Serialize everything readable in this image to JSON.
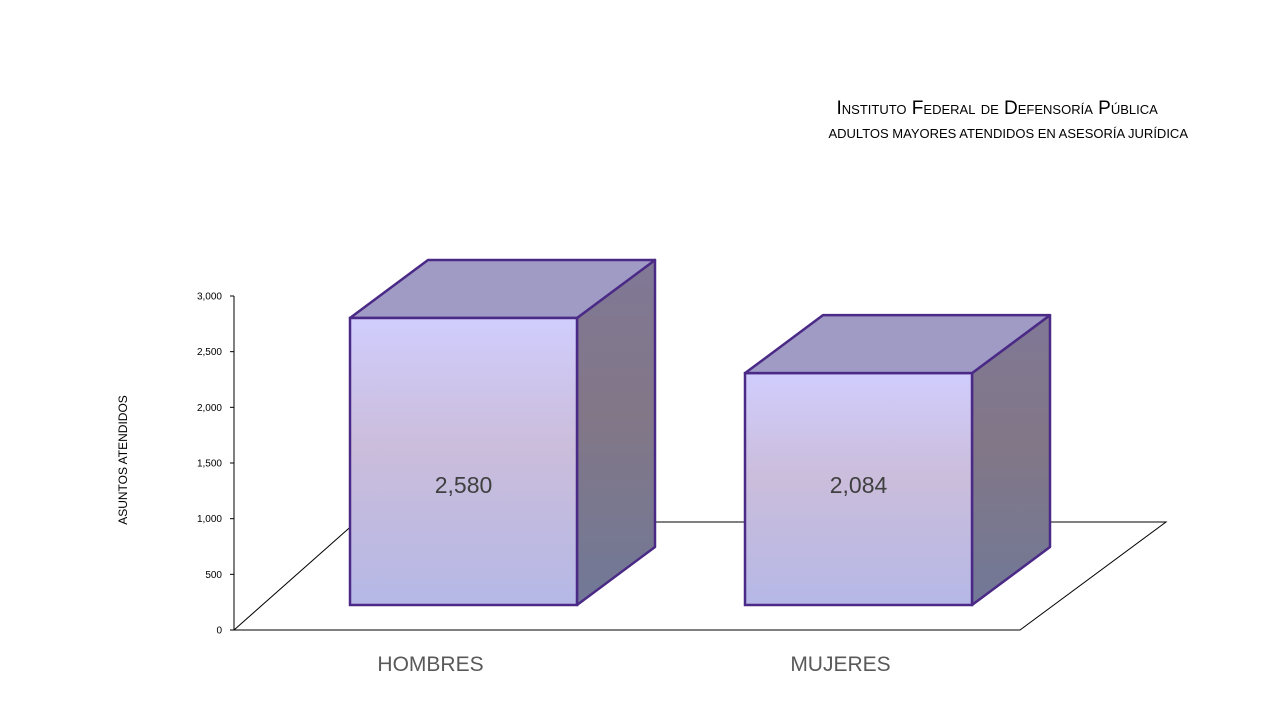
{
  "header": {
    "title": "Instituto Federal de Defensoría Pública",
    "subtitle": "ADULTOS MAYORES ATENDIDOS EN ASESORÍA JURÍDICA"
  },
  "chart_data": {
    "type": "bar",
    "style": "3d",
    "categories": [
      "HOMBRES",
      "MUJERES"
    ],
    "values": [
      2580,
      2084
    ],
    "data_labels": [
      "2,580",
      "2,084"
    ],
    "ylabel": "ASUNTOS ATENDIDOS",
    "ylim": [
      0,
      3000
    ],
    "yticks": [
      0,
      500,
      1000,
      1500,
      2000,
      2500,
      3000
    ],
    "ytick_labels": [
      "0",
      "500",
      "1,000",
      "1,500",
      "2,000",
      "2,500",
      "3,000"
    ],
    "grid": false,
    "legend": "none",
    "colors": {
      "front_top": "#d0cdfd",
      "front_mid": "#cbbddb",
      "front_bottom": "#b5b8e6",
      "side_top": "#807896",
      "side_mid": "#827787",
      "side_bottom": "#717897",
      "top_face": "#9f9bc5",
      "edge": "#4a2a86"
    }
  }
}
